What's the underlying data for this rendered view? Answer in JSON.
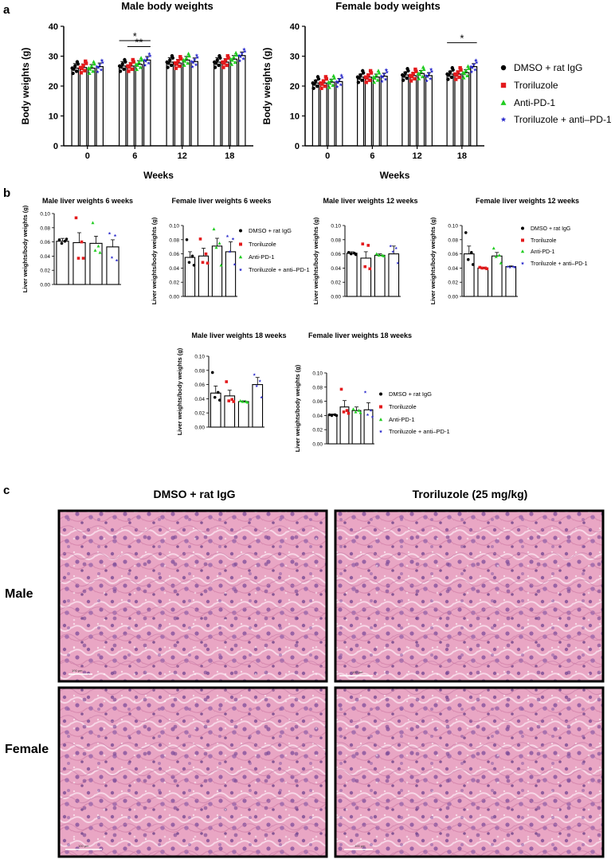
{
  "panel_labels": {
    "a": "a",
    "b": "b",
    "c": "c"
  },
  "colors": {
    "DMSO + rat IgG": "#000000",
    "Troriluzole": "#e31a1c",
    "Anti-PD-1": "#22cc22",
    "Troriluzole + anti–PD-1": "#2a2acc",
    "he_pink": "#e8a0c0",
    "he_nuclei": "#6a3f8e"
  },
  "chart_data": [
    {
      "id": "male_body",
      "type": "bar",
      "title": "Male body weights",
      "xlabel": "Weeks",
      "ylabel": "Body weights (g)",
      "categories": [
        "0",
        "6",
        "12",
        "18"
      ],
      "ylim": [
        0,
        40
      ],
      "yticks": [
        "0",
        "10",
        "20",
        "30",
        "40"
      ],
      "series": [
        {
          "name": "DMSO + rat IgG",
          "values": [
            26.0,
            26.7,
            28.0,
            28.0
          ],
          "err": [
            1.5,
            1.5,
            1.5,
            1.5
          ]
        },
        {
          "name": "Troriluzole",
          "values": [
            26.2,
            26.7,
            27.7,
            28.0
          ],
          "err": [
            1.2,
            1.2,
            1.2,
            1.2
          ]
        },
        {
          "name": "Anti-PD-1",
          "values": [
            26.0,
            27.3,
            28.7,
            29.0
          ],
          "err": [
            1.2,
            1.2,
            1.2,
            1.2
          ]
        },
        {
          "name": "Troriluzole + anti–PD-1",
          "values": [
            26.5,
            28.7,
            28.2,
            30.2
          ],
          "err": [
            1.2,
            1.2,
            1.2,
            1.2
          ]
        }
      ],
      "annotations": [
        {
          "text": "*",
          "group": "6",
          "from": 0,
          "to": 3,
          "level": 35.2
        },
        {
          "text": "**",
          "group": "6",
          "from": 1,
          "to": 3,
          "level": 33.2
        }
      ]
    },
    {
      "id": "female_body",
      "type": "bar",
      "title": "Female body weights",
      "xlabel": "Weeks",
      "ylabel": "Body weights (g)",
      "categories": [
        "0",
        "6",
        "12",
        "18"
      ],
      "ylim": [
        0,
        40
      ],
      "yticks": [
        "0",
        "10",
        "20",
        "30",
        "40"
      ],
      "series": [
        {
          "name": "DMSO + rat IgG",
          "values": [
            21.0,
            23.0,
            23.7,
            24.0
          ],
          "err": [
            1.0,
            1.0,
            1.0,
            1.0
          ]
        },
        {
          "name": "Troriluzole",
          "values": [
            21.0,
            23.0,
            23.5,
            24.0
          ],
          "err": [
            1.0,
            1.0,
            1.0,
            1.0
          ]
        },
        {
          "name": "Anti-PD-1",
          "values": [
            21.3,
            23.0,
            24.2,
            24.5
          ],
          "err": [
            1.0,
            1.0,
            1.0,
            1.0
          ]
        },
        {
          "name": "Troriluzole + anti–PD-1",
          "values": [
            21.5,
            23.3,
            23.5,
            26.5
          ],
          "err": [
            1.0,
            1.0,
            1.0,
            1.0
          ]
        }
      ],
      "annotations": [
        {
          "text": "*",
          "group": "18",
          "from": 0,
          "to": 3,
          "level": 34.5
        }
      ]
    },
    {
      "id": "male_liver_6",
      "type": "bar",
      "title": "Male liver weights 6 weeks",
      "ylabel": "Liver weights/body weights (g)",
      "categories": [
        "DMSO + rat IgG",
        "Troriluzole",
        "Anti-PD-1",
        "Troriluzole + anti–PD-1"
      ],
      "ylim": [
        0,
        0.1
      ],
      "yticks": [
        "0.00",
        "0.02",
        "0.04",
        "0.06",
        "0.08",
        "0.10"
      ],
      "values": [
        0.061,
        0.059,
        0.058,
        0.053
      ],
      "err": [
        0.004,
        0.014,
        0.01,
        0.01
      ],
      "points": [
        [
          0.063,
          0.061,
          0.058,
          0.064
        ],
        [
          0.094,
          0.06,
          0.037,
          0.037
        ],
        [
          0.087,
          0.054,
          0.048,
          0.045
        ],
        [
          0.072,
          0.069,
          0.038,
          0.034
        ]
      ]
    },
    {
      "id": "female_liver_6",
      "type": "bar",
      "title": "Female liver weights 6 weeks",
      "ylabel": "Liver weights/body weights (g)",
      "categories": [
        "DMSO + rat IgG",
        "Troriluzole",
        "Anti-PD-1",
        "Troriluzole + anti–PD-1"
      ],
      "ylim": [
        0,
        0.1
      ],
      "yticks": [
        "0.00",
        "0.02",
        "0.04",
        "0.06",
        "0.08",
        "0.10"
      ],
      "values": [
        0.055,
        0.057,
        0.071,
        0.063
      ],
      "err": [
        0.008,
        0.011,
        0.011,
        0.014
      ],
      "points": [
        [
          0.08,
          0.057,
          0.048,
          0.044
        ],
        [
          0.081,
          0.06,
          0.048,
          0.047
        ],
        [
          0.095,
          0.075,
          0.069,
          0.044
        ],
        [
          0.085,
          0.081,
          0.063,
          0.045
        ]
      ]
    },
    {
      "id": "male_liver_12",
      "type": "bar",
      "title": "Male liver weights 12 weeks",
      "ylabel": "Liver weights/body weights (g)",
      "categories": [
        "DMSO + rat IgG",
        "Troriluzole",
        "Anti-PD-1",
        "Troriluzole + anti–PD-1"
      ],
      "ylim": [
        0,
        0.1
      ],
      "yticks": [
        "0.00",
        "0.02",
        "0.04",
        "0.06",
        "0.08",
        "0.10"
      ],
      "values": [
        0.061,
        0.054,
        0.058,
        0.06
      ],
      "err": [
        0.002,
        0.009,
        0.002,
        0.011
      ],
      "points": [
        [
          0.062,
          0.061,
          0.06,
          0.059
        ],
        [
          0.074,
          0.072,
          0.042,
          0.039
        ],
        [
          0.06,
          0.058,
          0.058,
          0.057
        ],
        [
          0.071,
          0.068,
          0.063,
          0.047
        ]
      ]
    },
    {
      "id": "female_liver_12",
      "type": "bar",
      "title": "Female liver weights 12 weeks",
      "ylabel": "Liver weights/body weights (g)",
      "categories": [
        "DMSO + rat IgG",
        "Troriluzole",
        "Anti-PD-1",
        "Troriluzole + anti–PD-1"
      ],
      "ylim": [
        0,
        0.1
      ],
      "yticks": [
        "0.00",
        "0.02",
        "0.04",
        "0.06",
        "0.08",
        "0.10"
      ],
      "values": [
        0.06,
        0.04,
        0.057,
        0.042
      ],
      "err": [
        0.011,
        0.001,
        0.005,
        0.001
      ],
      "points": [
        [
          0.09,
          0.062,
          0.052,
          0.045
        ],
        [
          0.041,
          0.04,
          0.04,
          0.039
        ],
        [
          0.068,
          0.058,
          0.056,
          0.047
        ],
        [
          0.042,
          0.042,
          0.041,
          0.041
        ]
      ]
    },
    {
      "id": "male_liver_18",
      "type": "bar",
      "title": "Male liver weights 18 weeks",
      "ylabel": "Liver weights/body weights (g)",
      "categories": [
        "DMSO + rat IgG",
        "Troriluzole",
        "Anti-PD-1",
        "Troriluzole + anti–PD-1"
      ],
      "ylim": [
        0,
        0.1
      ],
      "yticks": [
        "0.00",
        "0.02",
        "0.04",
        "0.06",
        "0.08",
        "0.10"
      ],
      "values": [
        0.048,
        0.044,
        0.036,
        0.06
      ],
      "err": [
        0.01,
        0.008,
        0.001,
        0.01
      ],
      "points": [
        [
          0.077,
          0.049,
          0.042,
          0.038
        ],
        [
          0.064,
          0.039,
          0.037,
          0.036
        ],
        [
          0.037,
          0.036,
          0.036,
          0.035
        ],
        [
          0.074,
          0.065,
          0.058,
          0.042
        ]
      ]
    },
    {
      "id": "female_liver_18",
      "type": "bar",
      "title": "Female liver weights 18 weeks",
      "ylabel": "Liver weights/body weights (g)",
      "categories": [
        "DMSO + rat IgG",
        "Troriluzole",
        "Anti-PD-1",
        "Troriluzole + anti–PD-1"
      ],
      "ylim": [
        0,
        0.1
      ],
      "yticks": [
        "0.00",
        "0.02",
        "0.04",
        "0.06",
        "0.08",
        "0.10"
      ],
      "values": [
        0.041,
        0.052,
        0.047,
        0.048
      ],
      "err": [
        0.001,
        0.009,
        0.005,
        0.01
      ],
      "points": [
        [
          0.041,
          0.041,
          0.04,
          0.04
        ],
        [
          0.077,
          0.047,
          0.045,
          0.043
        ],
        [
          0.049,
          0.047,
          0.045,
          0.044
        ],
        [
          0.073,
          0.047,
          0.041,
          0.038
        ]
      ]
    }
  ],
  "legend": {
    "items": [
      "DMSO + rat IgG",
      "Troriluzole",
      "Anti-PD-1",
      "Troriluzole + anti–PD-1"
    ]
  },
  "histology": {
    "columns": [
      "DMSO + rat IgG",
      "Troriluzole (25 mg/kg)"
    ],
    "rows": [
      "Male",
      "Female"
    ],
    "scale_bar": "100 μm"
  }
}
